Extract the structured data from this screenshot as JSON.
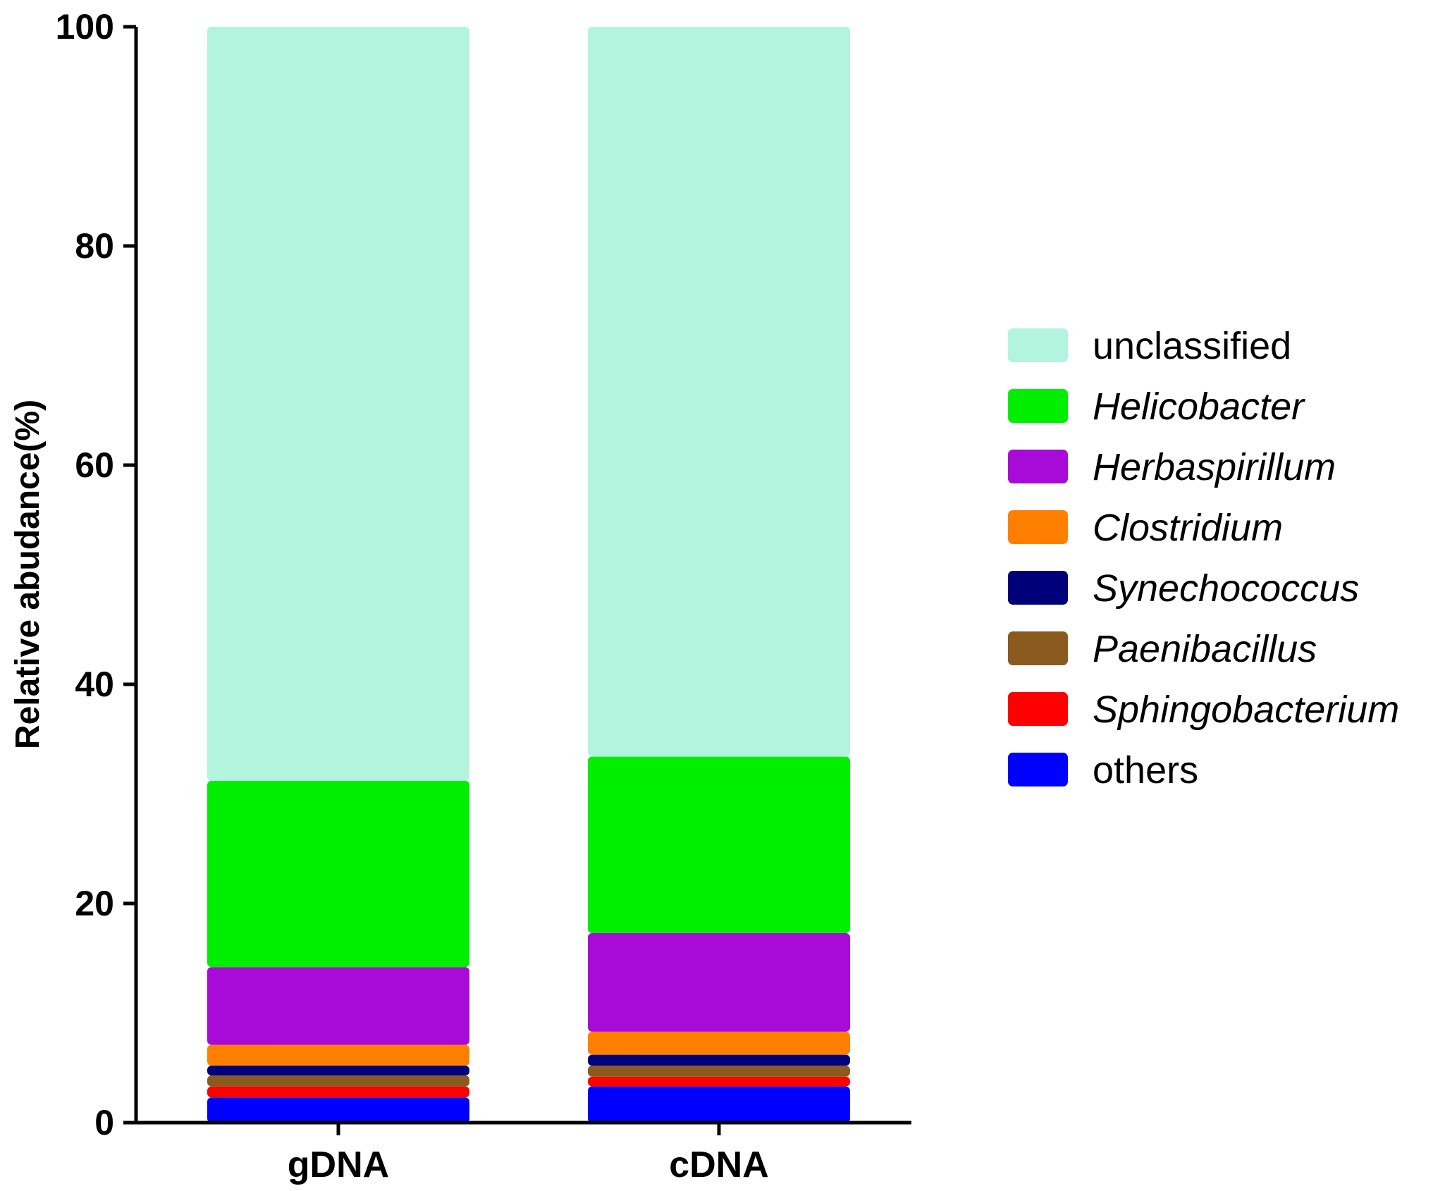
{
  "chart_data": {
    "type": "bar",
    "stacked": true,
    "title": "",
    "xlabel": "",
    "ylabel": "Relative abudance(%)",
    "ylim": [
      0,
      100
    ],
    "yticks": [
      0,
      20,
      40,
      60,
      80,
      100
    ],
    "categories": [
      "gDNA",
      "cDNA"
    ],
    "legend_position": "right",
    "series": [
      {
        "name": "others",
        "italic": false,
        "color": "#0000ff",
        "values": [
          2.3,
          3.3
        ]
      },
      {
        "name": "Sphingobacterium",
        "italic": true,
        "color": "#ff0000",
        "values": [
          1.0,
          0.9
        ]
      },
      {
        "name": "Paenibacillus",
        "italic": true,
        "color": "#8b5a1e",
        "values": [
          1.0,
          1.0
        ]
      },
      {
        "name": "Synechococcus",
        "italic": true,
        "color": "#00007a",
        "values": [
          0.9,
          1.0
        ]
      },
      {
        "name": "Clostridium",
        "italic": true,
        "color": "#ff7f00",
        "values": [
          1.9,
          2.1
        ]
      },
      {
        "name": "Herbaspirillum",
        "italic": true,
        "color": "#a80ad8",
        "values": [
          7.1,
          9.0
        ]
      },
      {
        "name": "Helicobacter",
        "italic": true,
        "color": "#00ee00",
        "values": [
          17.0,
          16.1
        ]
      },
      {
        "name": "unclassified",
        "italic": false,
        "color": "#b3f4de",
        "values": [
          68.8,
          66.6
        ]
      }
    ]
  }
}
